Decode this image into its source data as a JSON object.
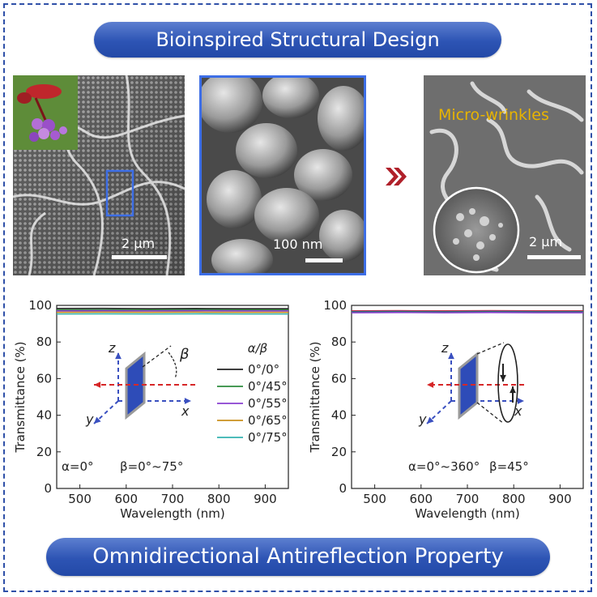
{
  "banners": {
    "top": "Bioinspired Structural Design",
    "bottom": "Omnidirectional Antireflection Property"
  },
  "images": {
    "left": {
      "scalebar": "2 μm"
    },
    "middle": {
      "scalebar": "100 nm"
    },
    "right": {
      "label": "Micro-wrinkles",
      "scalebar": "2 μm"
    }
  },
  "colors": {
    "banner": "#2d54b4",
    "frame": "#2f50a8",
    "arrow": "#b0202a",
    "micro_label": "#e8b400"
  },
  "chart_data": [
    {
      "type": "line",
      "xlabel": "Wavelength (nm)",
      "ylabel": "Transmittance (%)",
      "xlim": [
        450,
        950
      ],
      "ylim": [
        0,
        100
      ],
      "xticks": [
        500,
        600,
        700,
        800,
        900
      ],
      "yticks": [
        0,
        20,
        40,
        60,
        80,
        100
      ],
      "legend_title": "α/β",
      "legend_position": "center-right",
      "annotation_alpha": "α=0°",
      "annotation_beta": "β=0°~75°",
      "diagram": {
        "axis_z": "z",
        "axis_x": "x",
        "axis_y": "y",
        "beta_symbol": "β"
      },
      "series": [
        {
          "name": "0°/0°",
          "color": "#222222",
          "x": [
            450,
            550,
            650,
            750,
            850,
            950
          ],
          "values": [
            98.3,
            98.4,
            98.2,
            98.3,
            98.2,
            98.2
          ]
        },
        {
          "name": "0°/45°",
          "color": "#2e8b3e",
          "x": [
            450,
            550,
            650,
            750,
            850,
            950
          ],
          "values": [
            97.5,
            97.6,
            97.5,
            97.6,
            97.5,
            97.5
          ]
        },
        {
          "name": "0°/55°",
          "color": "#8a3fd0",
          "x": [
            450,
            550,
            650,
            750,
            850,
            950
          ],
          "values": [
            97.0,
            97.1,
            97.0,
            97.1,
            97.0,
            97.0
          ]
        },
        {
          "name": "0°/65°",
          "color": "#c9901e",
          "x": [
            450,
            550,
            650,
            750,
            850,
            950
          ],
          "values": [
            96.2,
            96.3,
            96.2,
            96.3,
            96.2,
            96.2
          ]
        },
        {
          "name": "0°/75°",
          "color": "#35b3b0",
          "x": [
            450,
            550,
            650,
            750,
            850,
            950
          ],
          "values": [
            95.3,
            95.4,
            95.3,
            95.4,
            95.3,
            95.3
          ]
        }
      ]
    },
    {
      "type": "line",
      "xlabel": "Wavelength (nm)",
      "ylabel": "Transmittance (%)",
      "xlim": [
        450,
        950
      ],
      "ylim": [
        0,
        100
      ],
      "xticks": [
        500,
        600,
        700,
        800,
        900
      ],
      "yticks": [
        0,
        20,
        40,
        60,
        80,
        100
      ],
      "annotation_alpha": "α=0°~360°",
      "annotation_beta": "β=45°",
      "diagram": {
        "axis_z": "z",
        "axis_x": "x",
        "axis_y": "y"
      },
      "series": [
        {
          "color": "#d62728",
          "x": [
            450,
            550,
            650,
            750,
            850,
            950
          ],
          "values": [
            97.0,
            97.1,
            97.0,
            97.1,
            97.0,
            97.0
          ]
        },
        {
          "color": "#2f4fd0",
          "x": [
            450,
            550,
            650,
            750,
            850,
            950
          ],
          "values": [
            96.6,
            96.7,
            96.6,
            96.7,
            96.6,
            96.6
          ]
        },
        {
          "color": "#2e8b3e",
          "x": [
            450,
            550,
            650,
            750,
            850,
            950
          ],
          "values": [
            96.3,
            96.4,
            96.3,
            96.4,
            96.3,
            96.3
          ]
        },
        {
          "color": "#8a3fd0",
          "x": [
            450,
            550,
            650,
            750,
            850,
            950
          ],
          "values": [
            96.0,
            96.1,
            96.0,
            96.1,
            96.0,
            96.0
          ]
        }
      ]
    }
  ]
}
